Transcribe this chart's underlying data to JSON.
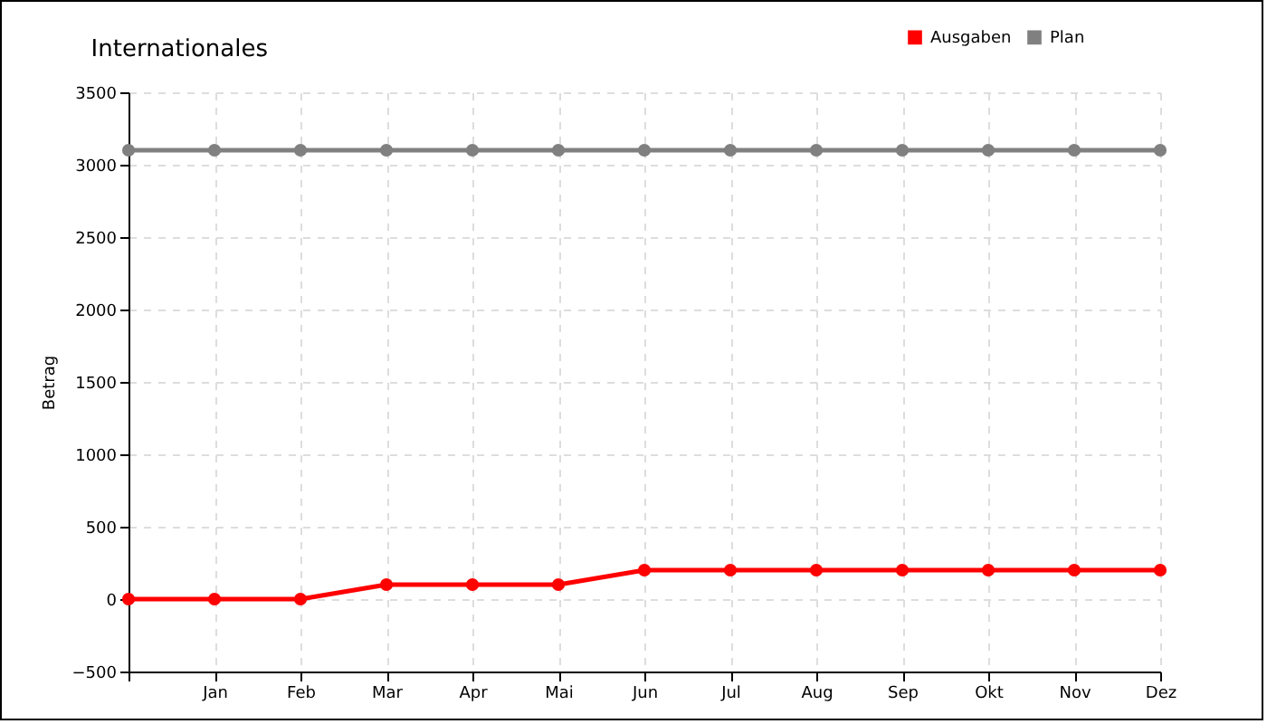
{
  "chart_data": {
    "type": "line",
    "title": "Internationales",
    "ylabel": "Betrag",
    "categories": [
      null,
      "Jan",
      "Feb",
      "Mar",
      "Apr",
      "Mai",
      "Jun",
      "Jul",
      "Aug",
      "Sep",
      "Okt",
      "Nov",
      "Dez"
    ],
    "series": [
      {
        "name": "Ausgaben",
        "color": "#ff0000",
        "values": [
          0,
          0,
          0,
          100,
          100,
          100,
          200,
          200,
          200,
          200,
          200,
          200,
          200
        ]
      },
      {
        "name": "Plan",
        "color": "#808080",
        "values": [
          3100,
          3100,
          3100,
          3100,
          3100,
          3100,
          3100,
          3100,
          3100,
          3100,
          3100,
          3100,
          3100
        ]
      }
    ],
    "ylim": [
      -500,
      3500
    ],
    "yticks": [
      -500,
      0,
      500,
      1000,
      1500,
      2000,
      2500,
      3000,
      3500
    ],
    "grid": true,
    "legend": "top right",
    "marker": "circle",
    "line_style": "solid"
  }
}
